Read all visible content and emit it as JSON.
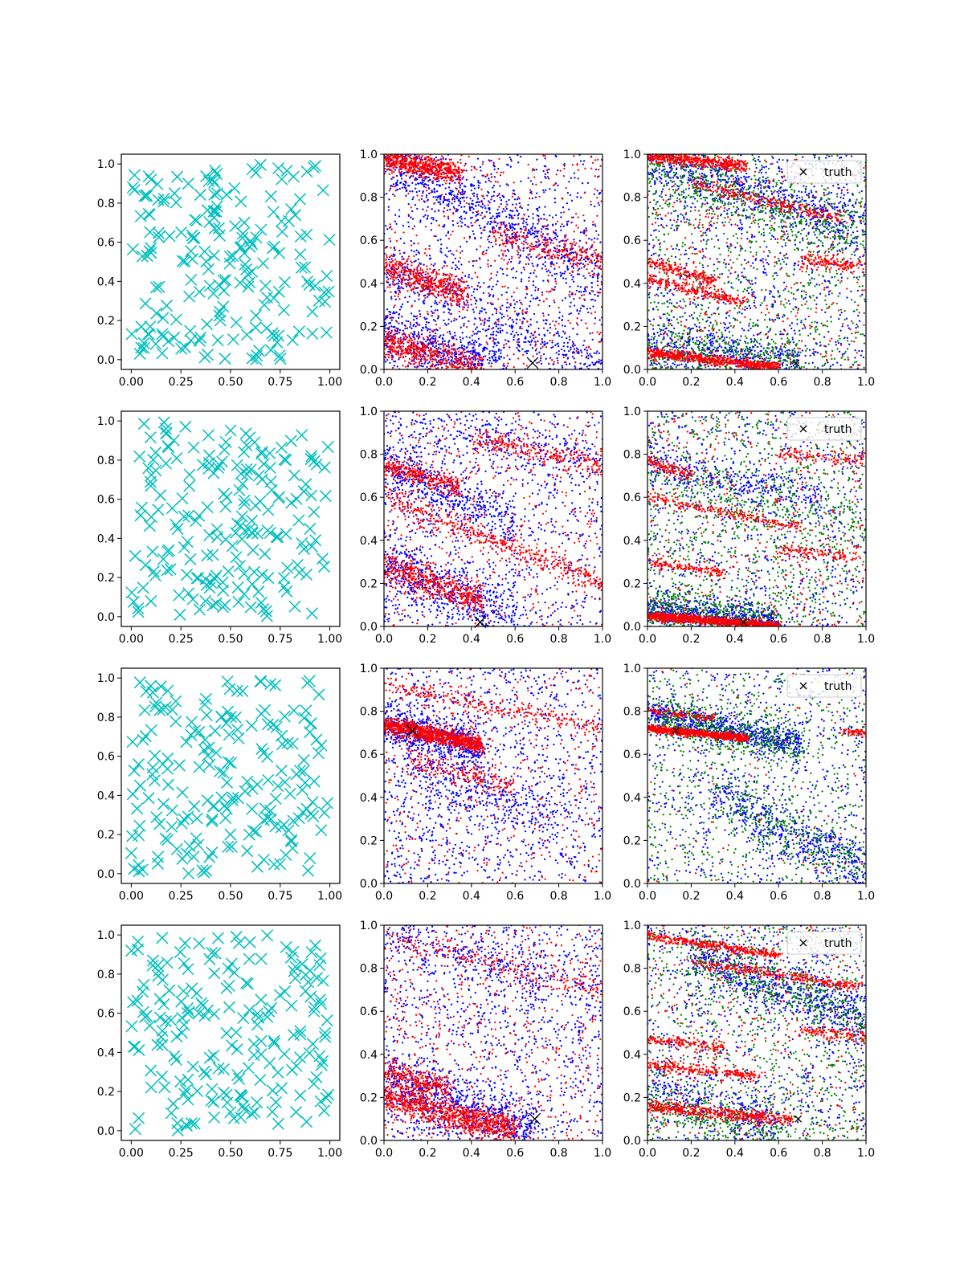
{
  "figure": {
    "rows": 4,
    "cols": 3
  },
  "colors": {
    "cyan": "#00bfbf",
    "blue": "#0000ff",
    "red": "#ff0000",
    "green": "#008000",
    "truth": "#000000",
    "axis": "#000000"
  },
  "legend": {
    "label": "truth",
    "placement": "upper right",
    "icon": "x-marker"
  },
  "chart_data": [
    {
      "row": 0,
      "col": 0,
      "type": "scatter",
      "marker": "x",
      "color": "cyan",
      "n_points": 200,
      "seed": 11,
      "xlim": [
        -0.05,
        1.05
      ],
      "ylim": [
        -0.05,
        1.05
      ],
      "xticks": [
        "0.00",
        "0.25",
        "0.50",
        "0.75",
        "1.00"
      ],
      "yticks": [
        "0.0",
        "0.2",
        "0.4",
        "0.6",
        "0.8",
        "1.0"
      ]
    },
    {
      "row": 0,
      "col": 1,
      "type": "scatter",
      "xlim": [
        0,
        1
      ],
      "ylim": [
        0,
        1
      ],
      "seed": 12,
      "xticks": [
        "0.0",
        "0.2",
        "0.4",
        "0.6",
        "0.8",
        "1.0"
      ],
      "yticks": [
        "0.0",
        "0.2",
        "0.4",
        "0.6",
        "0.8",
        "1.0"
      ],
      "truth": [
        0.68,
        0.03
      ],
      "series": [
        {
          "color": "blue",
          "n_bg": 900,
          "bands": [
            {
              "y0": 0.98,
              "slope": -0.55,
              "x0": 0.0,
              "x1": 1.0,
              "n": 700,
              "spread": 0.07
            },
            {
              "y0": 0.48,
              "slope": -0.5,
              "x0": 0.0,
              "x1": 1.0,
              "n": 450,
              "spread": 0.07
            },
            {
              "y0": 0.17,
              "slope": -0.3,
              "x0": 0.0,
              "x1": 0.55,
              "n": 500,
              "spread": 0.06
            }
          ]
        },
        {
          "color": "red",
          "n_bg": 500,
          "bands": [
            {
              "y0": 0.98,
              "slope": -0.2,
              "x0": 0.0,
              "x1": 0.35,
              "n": 600,
              "spread": 0.025
            },
            {
              "y0": 0.48,
              "slope": -0.35,
              "x0": 0.0,
              "x1": 0.38,
              "n": 450,
              "spread": 0.035
            },
            {
              "y0": 0.13,
              "slope": -0.3,
              "x0": 0.0,
              "x1": 0.45,
              "n": 500,
              "spread": 0.04
            },
            {
              "y0": 0.75,
              "slope": -0.25,
              "x0": 0.5,
              "x1": 1.0,
              "n": 250,
              "spread": 0.03
            }
          ]
        }
      ]
    },
    {
      "row": 0,
      "col": 2,
      "type": "scatter",
      "xlim": [
        0,
        1
      ],
      "ylim": [
        0,
        1
      ],
      "seed": 13,
      "xticks": [
        "0.0",
        "0.2",
        "0.4",
        "0.6",
        "0.8",
        "1.0"
      ],
      "yticks": [
        "0.0",
        "0.2",
        "0.4",
        "0.6",
        "0.8",
        "1.0"
      ],
      "truth": [
        0.68,
        0.03
      ],
      "legend": true,
      "series": [
        {
          "color": "blue",
          "n_bg": 900,
          "bands": [
            {
              "y0": 0.97,
              "slope": -0.3,
              "x0": 0.0,
              "x1": 1.0,
              "n": 600,
              "spread": 0.06
            },
            {
              "y0": 0.12,
              "slope": -0.15,
              "x0": 0.0,
              "x1": 0.7,
              "n": 400,
              "spread": 0.05
            }
          ]
        },
        {
          "color": "green",
          "n_bg": 900,
          "bands": [
            {
              "y0": 0.95,
              "slope": -0.35,
              "x0": 0.0,
              "x1": 1.0,
              "n": 450,
              "spread": 0.07
            },
            {
              "y0": 0.1,
              "slope": -0.1,
              "x0": 0.0,
              "x1": 0.7,
              "n": 350,
              "spread": 0.06
            }
          ]
        },
        {
          "color": "red",
          "n_bg": 400,
          "bands": [
            {
              "y0": 0.99,
              "slope": -0.1,
              "x0": 0.0,
              "x1": 0.45,
              "n": 450,
              "spread": 0.015
            },
            {
              "y0": 0.92,
              "slope": -0.25,
              "x0": 0.2,
              "x1": 0.9,
              "n": 250,
              "spread": 0.015
            },
            {
              "y0": 0.5,
              "slope": -0.3,
              "x0": 0.0,
              "x1": 0.3,
              "n": 200,
              "spread": 0.015
            },
            {
              "y0": 0.42,
              "slope": -0.25,
              "x0": 0.0,
              "x1": 0.45,
              "n": 250,
              "spread": 0.015
            },
            {
              "y0": 0.08,
              "slope": -0.12,
              "x0": 0.0,
              "x1": 0.6,
              "n": 650,
              "spread": 0.012
            },
            {
              "y0": 0.58,
              "slope": -0.1,
              "x0": 0.7,
              "x1": 1.0,
              "n": 150,
              "spread": 0.02
            }
          ]
        }
      ]
    },
    {
      "row": 1,
      "col": 0,
      "type": "scatter",
      "marker": "x",
      "color": "cyan",
      "n_points": 200,
      "seed": 21,
      "xlim": [
        -0.05,
        1.05
      ],
      "ylim": [
        -0.05,
        1.05
      ],
      "xticks": [
        "0.00",
        "0.25",
        "0.50",
        "0.75",
        "1.00"
      ],
      "yticks": [
        "0.0",
        "0.2",
        "0.4",
        "0.6",
        "0.8",
        "1.0"
      ]
    },
    {
      "row": 1,
      "col": 1,
      "type": "scatter",
      "xlim": [
        0,
        1
      ],
      "ylim": [
        0,
        1
      ],
      "seed": 22,
      "xticks": [
        "0.0",
        "0.2",
        "0.4",
        "0.6",
        "0.8",
        "1.0"
      ],
      "yticks": [
        "0.0",
        "0.2",
        "0.4",
        "0.6",
        "0.8",
        "1.0"
      ],
      "truth": [
        0.44,
        0.02
      ],
      "series": [
        {
          "color": "blue",
          "n_bg": 900,
          "bands": [
            {
              "y0": 0.75,
              "slope": -0.45,
              "x0": 0.0,
              "x1": 0.6,
              "n": 450,
              "spread": 0.06
            },
            {
              "y0": 0.28,
              "slope": -0.4,
              "x0": 0.0,
              "x1": 0.6,
              "n": 550,
              "spread": 0.08
            },
            {
              "y0": 0.97,
              "slope": -0.2,
              "x0": 0.0,
              "x1": 1.0,
              "n": 200,
              "spread": 0.05
            }
          ]
        },
        {
          "color": "red",
          "n_bg": 450,
          "bands": [
            {
              "y0": 0.75,
              "slope": -0.3,
              "x0": 0.0,
              "x1": 0.35,
              "n": 300,
              "spread": 0.025
            },
            {
              "y0": 0.6,
              "slope": -0.4,
              "x0": 0.0,
              "x1": 1.0,
              "n": 450,
              "spread": 0.03
            },
            {
              "y0": 0.28,
              "slope": -0.35,
              "x0": 0.0,
              "x1": 0.45,
              "n": 500,
              "spread": 0.035
            },
            {
              "y0": 0.95,
              "slope": -0.2,
              "x0": 0.4,
              "x1": 1.0,
              "n": 250,
              "spread": 0.025
            }
          ]
        }
      ]
    },
    {
      "row": 1,
      "col": 2,
      "type": "scatter",
      "xlim": [
        0,
        1
      ],
      "ylim": [
        0,
        1
      ],
      "seed": 23,
      "xticks": [
        "0.0",
        "0.2",
        "0.4",
        "0.6",
        "0.8",
        "1.0"
      ],
      "yticks": [
        "0.0",
        "0.2",
        "0.4",
        "0.6",
        "0.8",
        "1.0"
      ],
      "truth": [
        0.44,
        0.02
      ],
      "legend": true,
      "series": [
        {
          "color": "blue",
          "n_bg": 800,
          "bands": [
            {
              "y0": 0.75,
              "slope": -0.2,
              "x0": 0.0,
              "x1": 0.8,
              "n": 300,
              "spread": 0.04
            },
            {
              "y0": 0.08,
              "slope": -0.1,
              "x0": 0.0,
              "x1": 0.6,
              "n": 600,
              "spread": 0.04
            }
          ]
        },
        {
          "color": "green",
          "n_bg": 1000,
          "bands": [
            {
              "y0": 0.08,
              "slope": -0.1,
              "x0": 0.0,
              "x1": 0.6,
              "n": 400,
              "spread": 0.05
            },
            {
              "y0": 0.7,
              "slope": -0.25,
              "x0": 0.0,
              "x1": 1.0,
              "n": 200,
              "spread": 0.05
            }
          ]
        },
        {
          "color": "red",
          "n_bg": 400,
          "bands": [
            {
              "y0": 0.77,
              "slope": -0.35,
              "x0": 0.0,
              "x1": 0.2,
              "n": 120,
              "spread": 0.015
            },
            {
              "y0": 0.6,
              "slope": -0.2,
              "x0": 0.0,
              "x1": 0.7,
              "n": 200,
              "spread": 0.012
            },
            {
              "y0": 0.3,
              "slope": -0.15,
              "x0": 0.0,
              "x1": 0.35,
              "n": 150,
              "spread": 0.012
            },
            {
              "y0": 0.05,
              "slope": -0.08,
              "x0": 0.0,
              "x1": 0.6,
              "n": 900,
              "spread": 0.01
            },
            {
              "y0": 0.85,
              "slope": -0.08,
              "x0": 0.6,
              "x1": 1.0,
              "n": 120,
              "spread": 0.015
            },
            {
              "y0": 0.4,
              "slope": -0.08,
              "x0": 0.6,
              "x1": 1.0,
              "n": 120,
              "spread": 0.015
            }
          ]
        }
      ]
    },
    {
      "row": 2,
      "col": 0,
      "type": "scatter",
      "marker": "x",
      "color": "cyan",
      "n_points": 200,
      "seed": 31,
      "xlim": [
        -0.05,
        1.05
      ],
      "ylim": [
        -0.05,
        1.05
      ],
      "xticks": [
        "0.00",
        "0.25",
        "0.50",
        "0.75",
        "1.00"
      ],
      "yticks": [
        "0.0",
        "0.2",
        "0.4",
        "0.6",
        "0.8",
        "1.0"
      ]
    },
    {
      "row": 2,
      "col": 1,
      "type": "scatter",
      "xlim": [
        0,
        1
      ],
      "ylim": [
        0,
        1
      ],
      "seed": 32,
      "xticks": [
        "0.0",
        "0.2",
        "0.4",
        "0.6",
        "0.8",
        "1.0"
      ],
      "yticks": [
        "0.0",
        "0.2",
        "0.4",
        "0.6",
        "0.8",
        "1.0"
      ],
      "truth": [
        0.13,
        0.71
      ],
      "series": [
        {
          "color": "blue",
          "n_bg": 1100,
          "bands": [
            {
              "y0": 0.74,
              "slope": -0.25,
              "x0": 0.0,
              "x1": 0.45,
              "n": 650,
              "spread": 0.05
            },
            {
              "y0": 0.55,
              "slope": -0.3,
              "x0": 0.1,
              "x1": 0.8,
              "n": 300,
              "spread": 0.07
            }
          ]
        },
        {
          "color": "red",
          "n_bg": 450,
          "bands": [
            {
              "y0": 0.74,
              "slope": -0.22,
              "x0": 0.0,
              "x1": 0.45,
              "n": 900,
              "spread": 0.02
            },
            {
              "y0": 0.92,
              "slope": -0.2,
              "x0": 0.0,
              "x1": 1.0,
              "n": 250,
              "spread": 0.02
            },
            {
              "y0": 0.6,
              "slope": -0.25,
              "x0": 0.1,
              "x1": 0.6,
              "n": 200,
              "spread": 0.03
            }
          ]
        }
      ]
    },
    {
      "row": 2,
      "col": 2,
      "type": "scatter",
      "xlim": [
        0,
        1
      ],
      "ylim": [
        0,
        1
      ],
      "seed": 33,
      "xticks": [
        "0.0",
        "0.2",
        "0.4",
        "0.6",
        "0.8",
        "1.0"
      ],
      "yticks": [
        "0.0",
        "0.2",
        "0.4",
        "0.6",
        "0.8",
        "1.0"
      ],
      "truth": [
        0.13,
        0.71
      ],
      "legend": true,
      "series": [
        {
          "color": "blue",
          "n_bg": 700,
          "bands": [
            {
              "y0": 0.8,
              "slope": -0.22,
              "x0": 0.0,
              "x1": 0.7,
              "n": 700,
              "spread": 0.035
            },
            {
              "y0": 0.6,
              "slope": -0.55,
              "x0": 0.3,
              "x1": 1.0,
              "n": 450,
              "spread": 0.06
            }
          ]
        },
        {
          "color": "green",
          "n_bg": 700,
          "bands": [
            {
              "y0": 0.78,
              "slope": -0.22,
              "x0": 0.0,
              "x1": 0.7,
              "n": 500,
              "spread": 0.05
            },
            {
              "y0": 0.6,
              "slope": -0.55,
              "x0": 0.3,
              "x1": 1.0,
              "n": 250,
              "spread": 0.07
            }
          ]
        },
        {
          "color": "red",
          "n_bg": 100,
          "bands": [
            {
              "y0": 0.72,
              "slope": -0.1,
              "x0": 0.0,
              "x1": 0.45,
              "n": 800,
              "spread": 0.008
            },
            {
              "y0": 0.8,
              "slope": -0.1,
              "x0": 0.0,
              "x1": 0.3,
              "n": 100,
              "spread": 0.01
            },
            {
              "y0": 0.75,
              "slope": -0.05,
              "x0": 0.9,
              "x1": 1.0,
              "n": 60,
              "spread": 0.008
            }
          ]
        }
      ]
    },
    {
      "row": 3,
      "col": 0,
      "type": "scatter",
      "marker": "x",
      "color": "cyan",
      "n_points": 200,
      "seed": 41,
      "xlim": [
        -0.05,
        1.05
      ],
      "ylim": [
        -0.05,
        1.05
      ],
      "xticks": [
        "0.00",
        "0.25",
        "0.50",
        "0.75",
        "1.00"
      ],
      "yticks": [
        "0.0",
        "0.2",
        "0.4",
        "0.6",
        "0.8",
        "1.0"
      ]
    },
    {
      "row": 3,
      "col": 1,
      "type": "scatter",
      "xlim": [
        0,
        1
      ],
      "ylim": [
        0,
        1
      ],
      "seed": 42,
      "xticks": [
        "0.0",
        "0.2",
        "0.4",
        "0.6",
        "0.8",
        "1.0"
      ],
      "yticks": [
        "0.0",
        "0.2",
        "0.4",
        "0.6",
        "0.8",
        "1.0"
      ],
      "truth": [
        0.69,
        0.1
      ],
      "series": [
        {
          "color": "blue",
          "n_bg": 1100,
          "bands": [
            {
              "y0": 0.28,
              "slope": -0.35,
              "x0": 0.0,
              "x1": 0.7,
              "n": 700,
              "spread": 0.07
            },
            {
              "y0": 0.95,
              "slope": -0.25,
              "x0": 0.0,
              "x1": 1.0,
              "n": 250,
              "spread": 0.06
            }
          ]
        },
        {
          "color": "red",
          "n_bg": 600,
          "bands": [
            {
              "y0": 0.2,
              "slope": -0.25,
              "x0": 0.0,
              "x1": 0.6,
              "n": 900,
              "spread": 0.035
            },
            {
              "y0": 0.33,
              "slope": -0.3,
              "x0": 0.0,
              "x1": 0.3,
              "n": 250,
              "spread": 0.03
            },
            {
              "y0": 0.95,
              "slope": -0.25,
              "x0": 0.0,
              "x1": 1.0,
              "n": 200,
              "spread": 0.03
            }
          ]
        }
      ]
    },
    {
      "row": 3,
      "col": 2,
      "type": "scatter",
      "xlim": [
        0,
        1
      ],
      "ylim": [
        0,
        1
      ],
      "seed": 43,
      "xticks": [
        "0.0",
        "0.2",
        "0.4",
        "0.6",
        "0.8",
        "1.0"
      ],
      "yticks": [
        "0.0",
        "0.2",
        "0.4",
        "0.6",
        "0.8",
        "1.0"
      ],
      "truth": [
        0.69,
        0.1
      ],
      "legend": true,
      "series": [
        {
          "color": "blue",
          "n_bg": 800,
          "bands": [
            {
              "y0": 0.92,
              "slope": -0.35,
              "x0": 0.2,
              "x1": 1.0,
              "n": 600,
              "spread": 0.06
            },
            {
              "y0": 0.25,
              "slope": -0.3,
              "x0": 0.0,
              "x1": 0.6,
              "n": 300,
              "spread": 0.06
            }
          ]
        },
        {
          "color": "green",
          "n_bg": 900,
          "bands": [
            {
              "y0": 0.92,
              "slope": -0.35,
              "x0": 0.2,
              "x1": 1.0,
              "n": 350,
              "spread": 0.06
            },
            {
              "y0": 0.18,
              "slope": -0.3,
              "x0": 0.0,
              "x1": 0.6,
              "n": 300,
              "spread": 0.06
            }
          ]
        },
        {
          "color": "red",
          "n_bg": 350,
          "bands": [
            {
              "y0": 0.95,
              "slope": -0.15,
              "x0": 0.0,
              "x1": 0.6,
              "n": 350,
              "spread": 0.01
            },
            {
              "y0": 0.86,
              "slope": -0.15,
              "x0": 0.2,
              "x1": 1.0,
              "n": 300,
              "spread": 0.012
            },
            {
              "y0": 0.47,
              "slope": -0.1,
              "x0": 0.0,
              "x1": 0.35,
              "n": 150,
              "spread": 0.012
            },
            {
              "y0": 0.35,
              "slope": -0.1,
              "x0": 0.0,
              "x1": 0.5,
              "n": 250,
              "spread": 0.012
            },
            {
              "y0": 0.16,
              "slope": -0.1,
              "x0": 0.0,
              "x1": 0.65,
              "n": 450,
              "spread": 0.015
            },
            {
              "y0": 0.58,
              "slope": -0.1,
              "x0": 0.7,
              "x1": 1.0,
              "n": 120,
              "spread": 0.015
            }
          ]
        }
      ]
    }
  ]
}
